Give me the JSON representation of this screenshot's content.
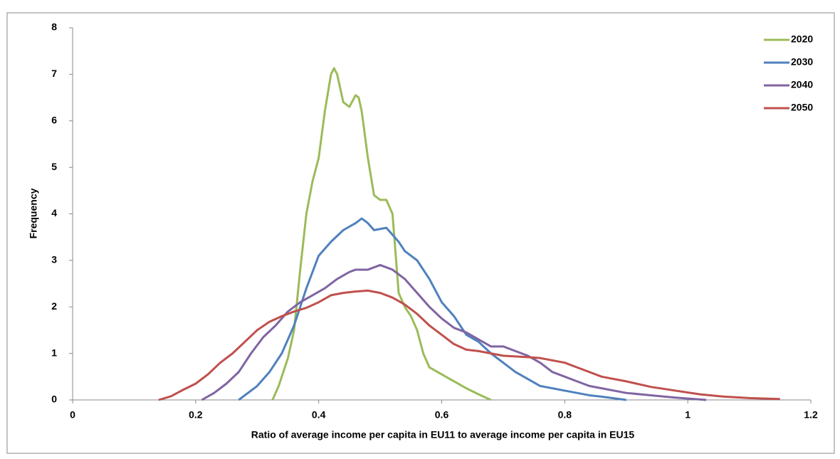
{
  "chart_data": {
    "type": "line",
    "xlabel": "Ratio of average income per capita in EU11 to average income per capita in EU15",
    "ylabel": "Frequency",
    "xlim": [
      0,
      1.2
    ],
    "xticks": [
      0,
      0.2,
      0.4,
      0.6,
      0.8,
      1,
      1.2
    ],
    "ylim": [
      0,
      8
    ],
    "yticks": [
      0,
      1,
      2,
      3,
      4,
      5,
      6,
      7,
      8
    ],
    "grid": false,
    "legend": "top-right",
    "series": [
      {
        "name": "2020",
        "color": "#9bbb59",
        "x": [
          0.325,
          0.335,
          0.35,
          0.36,
          0.37,
          0.38,
          0.39,
          0.4,
          0.41,
          0.42,
          0.425,
          0.43,
          0.44,
          0.45,
          0.46,
          0.465,
          0.47,
          0.48,
          0.49,
          0.5,
          0.51,
          0.52,
          0.53,
          0.54,
          0.55,
          0.56,
          0.57,
          0.58,
          0.6,
          0.62,
          0.64,
          0.66,
          0.68
        ],
        "values": [
          0,
          0.3,
          0.9,
          1.5,
          2.8,
          4.0,
          4.7,
          5.2,
          6.2,
          7.0,
          7.13,
          7.0,
          6.4,
          6.3,
          6.55,
          6.5,
          6.2,
          5.2,
          4.4,
          4.3,
          4.3,
          4.0,
          2.3,
          2.0,
          1.8,
          1.5,
          1.0,
          0.7,
          0.55,
          0.4,
          0.25,
          0.12,
          0
        ]
      },
      {
        "name": "2030",
        "color": "#4f81bd",
        "x": [
          0.27,
          0.3,
          0.32,
          0.34,
          0.36,
          0.38,
          0.4,
          0.42,
          0.44,
          0.46,
          0.47,
          0.48,
          0.49,
          0.51,
          0.53,
          0.54,
          0.56,
          0.58,
          0.6,
          0.62,
          0.64,
          0.66,
          0.68,
          0.7,
          0.72,
          0.74,
          0.76,
          0.78,
          0.8,
          0.84,
          0.86,
          0.9
        ],
        "values": [
          0,
          0.3,
          0.6,
          1.0,
          1.6,
          2.4,
          3.1,
          3.4,
          3.65,
          3.8,
          3.9,
          3.8,
          3.65,
          3.7,
          3.4,
          3.2,
          3.0,
          2.6,
          2.1,
          1.8,
          1.4,
          1.25,
          1.0,
          0.8,
          0.6,
          0.45,
          0.3,
          0.25,
          0.2,
          0.1,
          0.07,
          0
        ]
      },
      {
        "name": "2040",
        "color": "#8064a2",
        "x": [
          0.21,
          0.23,
          0.25,
          0.27,
          0.29,
          0.31,
          0.33,
          0.35,
          0.37,
          0.39,
          0.41,
          0.43,
          0.45,
          0.46,
          0.48,
          0.5,
          0.52,
          0.54,
          0.56,
          0.58,
          0.6,
          0.62,
          0.64,
          0.66,
          0.68,
          0.7,
          0.72,
          0.74,
          0.76,
          0.78,
          0.8,
          0.82,
          0.84,
          0.86,
          0.88,
          0.9,
          0.94,
          0.98,
          1.03
        ],
        "values": [
          0,
          0.15,
          0.35,
          0.6,
          1.0,
          1.35,
          1.6,
          1.9,
          2.1,
          2.25,
          2.4,
          2.6,
          2.75,
          2.8,
          2.8,
          2.9,
          2.8,
          2.6,
          2.3,
          2.0,
          1.75,
          1.55,
          1.45,
          1.3,
          1.15,
          1.15,
          1.05,
          0.95,
          0.8,
          0.6,
          0.5,
          0.4,
          0.3,
          0.25,
          0.2,
          0.15,
          0.1,
          0.05,
          0
        ]
      },
      {
        "name": "2050",
        "color": "#c0504d",
        "x": [
          0.14,
          0.16,
          0.18,
          0.2,
          0.22,
          0.24,
          0.26,
          0.28,
          0.3,
          0.32,
          0.34,
          0.36,
          0.38,
          0.4,
          0.42,
          0.44,
          0.46,
          0.48,
          0.5,
          0.52,
          0.54,
          0.56,
          0.58,
          0.6,
          0.62,
          0.64,
          0.66,
          0.68,
          0.7,
          0.74,
          0.76,
          0.8,
          0.82,
          0.84,
          0.86,
          0.9,
          0.94,
          0.98,
          1.02,
          1.06,
          1.1,
          1.15
        ],
        "values": [
          0,
          0.08,
          0.22,
          0.35,
          0.55,
          0.8,
          1.0,
          1.25,
          1.5,
          1.68,
          1.8,
          1.9,
          1.98,
          2.1,
          2.25,
          2.3,
          2.33,
          2.35,
          2.3,
          2.2,
          2.05,
          1.85,
          1.6,
          1.4,
          1.2,
          1.08,
          1.05,
          1.0,
          0.95,
          0.92,
          0.9,
          0.8,
          0.7,
          0.6,
          0.5,
          0.4,
          0.28,
          0.2,
          0.12,
          0.07,
          0.04,
          0.02
        ]
      }
    ]
  }
}
